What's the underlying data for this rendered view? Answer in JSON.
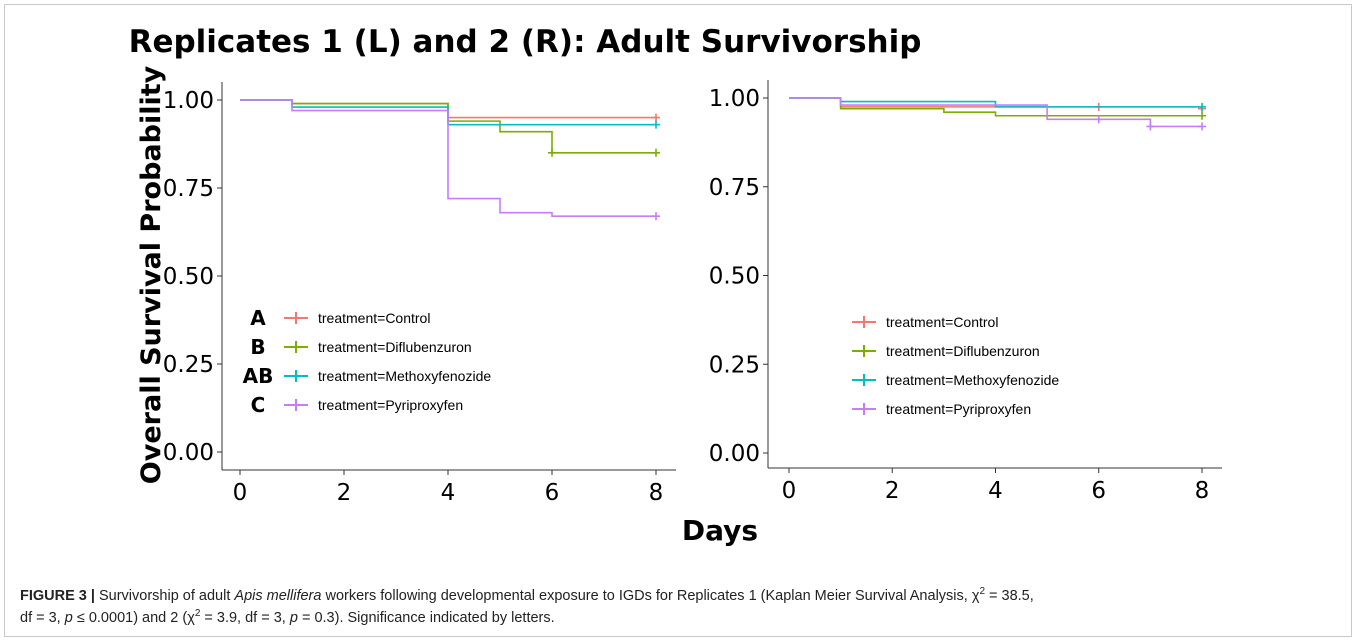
{
  "figure_title": "Replicates 1 (L) and 2 (R): Adult Survivorship",
  "shared_ylabel": "Overall Survival Probability",
  "shared_xlabel": "Days",
  "caption": {
    "label": "FIGURE 3 |",
    "text1": " Survivorship of adult ",
    "species": "Apis mellifera",
    "text2": " workers following developmental exposure to IGDs for Replicates 1 (Kaplan Meier Survival Analysis, χ",
    "sup1": "2",
    "text3": " = 38.5,",
    "text4": "df = 3, ",
    "p1": "p",
    "text5": " ≤ 0.0001) and 2 (χ",
    "sup2": "2",
    "text6": " = 3.9, df = 3, ",
    "p2": "p",
    "text7": " = 0.3). Significance indicated by letters."
  },
  "colors": {
    "Control": "#f8766d",
    "Diflubenzuron": "#7cae00",
    "Methoxyfenozide": "#00bfc4",
    "Pyriproxyfen": "#c77cff",
    "axis": "#333333",
    "text": "#000000"
  },
  "chart_data": [
    {
      "type": "line",
      "step": true,
      "xlim": [
        0,
        8
      ],
      "ylim": [
        0,
        1
      ],
      "xticks": [
        "0",
        "2",
        "4",
        "6",
        "8"
      ],
      "yticks": [
        "0.00",
        "0.25",
        "0.50",
        "0.75",
        "1.00"
      ],
      "legend_position": "left-middle",
      "series": [
        {
          "name": "treatment=Control",
          "letter": "A",
          "color_key": "Control",
          "x": [
            0,
            1,
            4,
            8
          ],
          "y": [
            1.0,
            0.99,
            0.95,
            0.95
          ],
          "censor": [
            8
          ]
        },
        {
          "name": "treatment=Diflubenzuron",
          "letter": "B",
          "color_key": "Diflubenzuron",
          "x": [
            0,
            1,
            4,
            5,
            6,
            8
          ],
          "y": [
            1.0,
            0.99,
            0.94,
            0.91,
            0.85,
            0.85
          ],
          "censor": [
            6,
            8
          ]
        },
        {
          "name": "treatment=Methoxyfenozide",
          "letter": "AB",
          "color_key": "Methoxyfenozide",
          "x": [
            0,
            1,
            4,
            8
          ],
          "y": [
            1.0,
            0.98,
            0.93,
            0.93
          ],
          "censor": [
            8
          ]
        },
        {
          "name": "treatment=Pyriproxyfen",
          "letter": "C",
          "color_key": "Pyriproxyfen",
          "x": [
            0,
            1,
            4,
            5,
            6,
            8
          ],
          "y": [
            1.0,
            0.97,
            0.72,
            0.68,
            0.67,
            0.67
          ],
          "censor": [
            8
          ]
        }
      ]
    },
    {
      "type": "line",
      "step": true,
      "xlim": [
        0,
        8
      ],
      "ylim": [
        0,
        1
      ],
      "xticks": [
        "0",
        "2",
        "4",
        "6",
        "8"
      ],
      "yticks": [
        "0.00",
        "0.25",
        "0.50",
        "0.75",
        "1.00"
      ],
      "legend_position": "center",
      "series": [
        {
          "name": "treatment=Control",
          "color_key": "Control",
          "x": [
            0,
            1,
            8
          ],
          "y": [
            1.0,
            0.975,
            0.97
          ],
          "censor": [
            6,
            8
          ]
        },
        {
          "name": "treatment=Diflubenzuron",
          "color_key": "Diflubenzuron",
          "x": [
            0,
            1,
            3,
            4,
            8
          ],
          "y": [
            1.0,
            0.97,
            0.96,
            0.95,
            0.95
          ],
          "censor": [
            8
          ]
        },
        {
          "name": "treatment=Methoxyfenozide",
          "color_key": "Methoxyfenozide",
          "x": [
            0,
            1,
            4,
            8
          ],
          "y": [
            1.0,
            0.99,
            0.975,
            0.975
          ],
          "censor": [
            8
          ]
        },
        {
          "name": "treatment=Pyriproxyfen",
          "color_key": "Pyriproxyfen",
          "x": [
            0,
            1,
            5,
            7,
            8
          ],
          "y": [
            1.0,
            0.98,
            0.94,
            0.92,
            0.92
          ],
          "censor": [
            6,
            7,
            8
          ]
        }
      ]
    }
  ]
}
